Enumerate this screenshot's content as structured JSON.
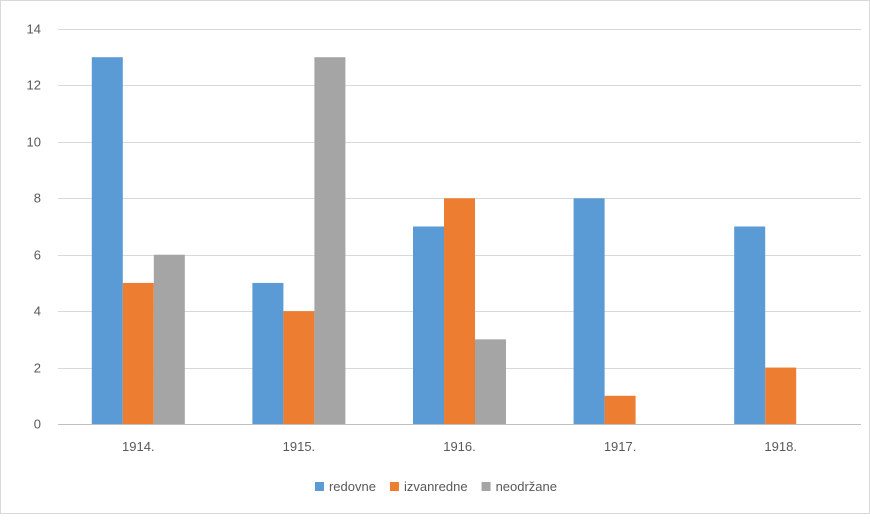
{
  "chart_data": {
    "type": "bar",
    "title": "",
    "xlabel": "",
    "ylabel": "",
    "categories": [
      "1914.",
      "1915.",
      "1916.",
      "1917.",
      "1918."
    ],
    "series": [
      {
        "name": "redovne",
        "values": [
          13,
          5,
          7,
          8,
          7
        ],
        "color": "#5b9bd5"
      },
      {
        "name": "izvanredne",
        "values": [
          5,
          4,
          8,
          1,
          2
        ],
        "color": "#ed7d31"
      },
      {
        "name": "neodržane",
        "values": [
          6,
          13,
          3,
          0,
          0
        ],
        "color": "#a5a5a5"
      }
    ],
    "ylim": [
      0,
      14
    ],
    "yticks": [
      "0",
      "2",
      "4",
      "6",
      "8",
      "10",
      "12",
      "14"
    ],
    "grid": true,
    "legend_position": "bottom"
  }
}
